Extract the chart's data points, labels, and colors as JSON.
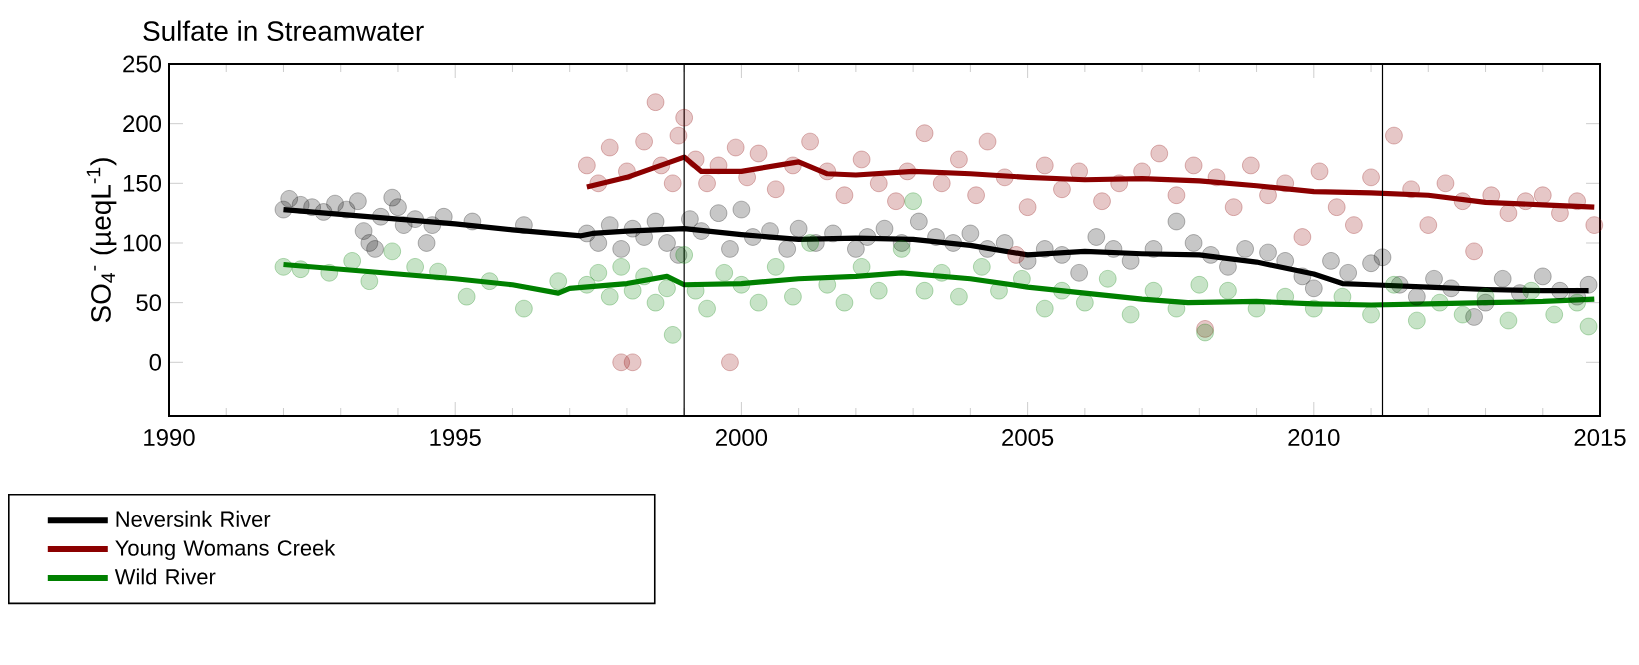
{
  "chart_data": {
    "type": "scatter",
    "title": "Sulfate in Streamwater",
    "ylabel": "SO$_{4}$$^{-}$ (µeqL$^{-1}$)",
    "xlim": [
      1990,
      2015
    ],
    "xticks": [
      1990,
      1995,
      2000,
      2005,
      2010,
      2015
    ],
    "ylim": [
      -45,
      250
    ],
    "yticks": [
      0,
      50,
      100,
      150,
      200,
      250
    ],
    "legend": "bottom left",
    "ref_lines": [
      {
        "axis": "x",
        "value": 1999.0,
        "color": "#000000"
      },
      {
        "axis": "x",
        "value": 2011.2,
        "color": "#000000"
      }
    ],
    "series": [
      {
        "marker": "circle",
        "color": "#000000",
        "x": [
          1992.0,
          1992.1,
          1992.3,
          1992.5,
          1992.7,
          1992.9,
          1993.1,
          1993.3,
          1993.4,
          1993.5,
          1993.6,
          1993.7,
          1993.9,
          1994.0,
          1994.1,
          1994.3,
          1994.5,
          1994.6,
          1994.8,
          1995.3,
          1996.2,
          1997.3,
          1997.5,
          1997.7,
          1997.9,
          1998.1,
          1998.3,
          1998.5,
          1998.7,
          1998.9,
          1999.1,
          1999.3,
          1999.6,
          1999.8,
          2000.0,
          2000.2,
          2000.5,
          2000.8,
          2001.0,
          2001.3,
          2001.6,
          2002.0,
          2002.2,
          2002.5,
          2002.8,
          2003.1,
          2003.4,
          2003.7,
          2004.0,
          2004.3,
          2004.6,
          2005.0,
          2005.3,
          2005.6,
          2005.9,
          2006.2,
          2006.5,
          2006.8,
          2007.2,
          2007.6,
          2007.9,
          2008.2,
          2008.5,
          2008.8,
          2009.2,
          2009.5,
          2009.8,
          2010.0,
          2010.3,
          2010.6,
          2011.0,
          2011.2,
          2011.5,
          2011.8,
          2012.1,
          2012.4,
          2012.8,
          2013.0,
          2013.3,
          2013.6,
          2014.0,
          2014.3,
          2014.6,
          2014.8
        ],
        "values": [
          128,
          137,
          132,
          130,
          126,
          133,
          128,
          135,
          110,
          100,
          95,
          122,
          138,
          130,
          115,
          120,
          100,
          115,
          122,
          118,
          115,
          108,
          100,
          115,
          95,
          112,
          105,
          118,
          100,
          90,
          120,
          110,
          125,
          95,
          128,
          105,
          110,
          95,
          112,
          100,
          108,
          95,
          105,
          112,
          100,
          118,
          105,
          100,
          108,
          95,
          100,
          85,
          95,
          90,
          75,
          105,
          95,
          85,
          95,
          118,
          100,
          90,
          80,
          95,
          92,
          85,
          72,
          62,
          85,
          75,
          83,
          88,
          65,
          55,
          70,
          62,
          38,
          50,
          70,
          58,
          72,
          60,
          55,
          65
        ]
      },
      {
        "marker": "circle",
        "color": "#8b0000",
        "x": [
          1997.3,
          1997.5,
          1997.7,
          1997.9,
          1998.0,
          1998.1,
          1998.3,
          1998.5,
          1998.6,
          1998.8,
          1998.9,
          1999.0,
          1999.2,
          1999.4,
          1999.6,
          1999.8,
          1999.9,
          2000.1,
          2000.3,
          2000.6,
          2000.9,
          2001.2,
          2001.5,
          2001.8,
          2002.1,
          2002.4,
          2002.7,
          2002.9,
          2003.2,
          2003.5,
          2003.8,
          2004.1,
          2004.3,
          2004.6,
          2004.8,
          2005.0,
          2005.3,
          2005.6,
          2005.9,
          2006.3,
          2006.6,
          2007.0,
          2007.3,
          2007.6,
          2007.9,
          2008.1,
          2008.3,
          2008.6,
          2008.9,
          2009.2,
          2009.5,
          2009.8,
          2010.1,
          2010.4,
          2010.7,
          2011.0,
          2011.4,
          2011.7,
          2012.0,
          2012.3,
          2012.6,
          2012.8,
          2013.1,
          2013.4,
          2013.7,
          2014.0,
          2014.3,
          2014.6,
          2014.9
        ],
        "values": [
          165,
          150,
          180,
          0,
          160,
          0,
          185,
          218,
          165,
          150,
          190,
          205,
          170,
          150,
          165,
          0,
          180,
          155,
          175,
          145,
          165,
          185,
          160,
          140,
          170,
          150,
          135,
          160,
          192,
          150,
          170,
          140,
          185,
          155,
          90,
          130,
          165,
          145,
          160,
          135,
          150,
          160,
          175,
          140,
          165,
          28,
          155,
          130,
          165,
          140,
          150,
          105,
          160,
          130,
          115,
          155,
          190,
          145,
          115,
          150,
          135,
          93,
          140,
          125,
          135,
          140,
          125,
          135,
          115
        ]
      },
      {
        "marker": "circle",
        "color": "#008000",
        "x": [
          1992.0,
          1992.3,
          1992.8,
          1993.2,
          1993.5,
          1993.9,
          1994.3,
          1994.7,
          1995.2,
          1995.6,
          1996.2,
          1996.8,
          1997.3,
          1997.5,
          1997.7,
          1997.9,
          1998.1,
          1998.3,
          1998.5,
          1998.7,
          1998.8,
          1999.0,
          1999.2,
          1999.4,
          1999.7,
          2000.0,
          2000.3,
          2000.6,
          2000.9,
          2001.2,
          2001.5,
          2001.8,
          2002.1,
          2002.4,
          2002.8,
          2003.0,
          2003.2,
          2003.5,
          2003.8,
          2004.2,
          2004.5,
          2004.9,
          2005.3,
          2005.6,
          2006.0,
          2006.4,
          2006.8,
          2007.2,
          2007.6,
          2008.0,
          2008.1,
          2008.5,
          2009.0,
          2009.5,
          2010.0,
          2010.5,
          2011.0,
          2011.4,
          2011.8,
          2012.2,
          2012.6,
          2013.0,
          2013.4,
          2013.8,
          2014.2,
          2014.6,
          2014.8
        ],
        "values": [
          80,
          78,
          75,
          85,
          68,
          93,
          80,
          76,
          55,
          68,
          45,
          68,
          65,
          75,
          55,
          80,
          60,
          72,
          50,
          62,
          23,
          90,
          60,
          45,
          75,
          65,
          50,
          80,
          55,
          100,
          65,
          50,
          80,
          60,
          95,
          135,
          60,
          75,
          55,
          80,
          60,
          70,
          45,
          60,
          50,
          70,
          40,
          60,
          45,
          65,
          25,
          60,
          45,
          55,
          45,
          55,
          40,
          65,
          35,
          50,
          40,
          55,
          35,
          60,
          40,
          50,
          30
        ]
      },
      {
        "type": "line",
        "name": "Neversink River",
        "color": "#000000",
        "x": [
          1992,
          1993,
          1994,
          1995,
          1996,
          1997.2,
          1997.4,
          1998,
          1999,
          2000,
          2001,
          2002,
          2003,
          2004,
          2005,
          2006,
          2007,
          2008,
          2009,
          2010,
          2010.5,
          2011,
          2012,
          2013,
          2014,
          2014.8
        ],
        "values": [
          128,
          124,
          120,
          116,
          111,
          106,
          108,
          110,
          112,
          107,
          103,
          104,
          103,
          98,
          90,
          93,
          91,
          90,
          84,
          74,
          66,
          65,
          63,
          61,
          60,
          60
        ]
      },
      {
        "type": "line",
        "name": "Young Womans Creek",
        "color": "#8b0000",
        "x": [
          1997.3,
          1998,
          1999,
          1999.3,
          2000,
          2001,
          2001.5,
          2002,
          2003,
          2004,
          2005,
          2006,
          2007,
          2008,
          2009,
          2010,
          2011,
          2012,
          2013,
          2014,
          2014.9
        ],
        "values": [
          147,
          155,
          172,
          160,
          160,
          168,
          158,
          157,
          160,
          158,
          155,
          153,
          154,
          152,
          148,
          143,
          142,
          140,
          134,
          132,
          130
        ]
      },
      {
        "type": "line",
        "name": "Wild River",
        "color": "#008000",
        "x": [
          1992,
          1993,
          1994,
          1995,
          1996,
          1996.8,
          1997,
          1998,
          1998.7,
          1999,
          2000,
          2001,
          2002,
          2002.8,
          2004,
          2005,
          2006,
          2007,
          2007.8,
          2009,
          2010,
          2011,
          2012,
          2013,
          2014,
          2014.9
        ],
        "values": [
          82,
          78,
          74,
          70,
          65,
          58,
          62,
          66,
          72,
          65,
          66,
          70,
          72,
          75,
          70,
          63,
          58,
          53,
          50,
          51,
          49,
          48,
          49,
          50,
          51,
          53
        ]
      }
    ]
  }
}
